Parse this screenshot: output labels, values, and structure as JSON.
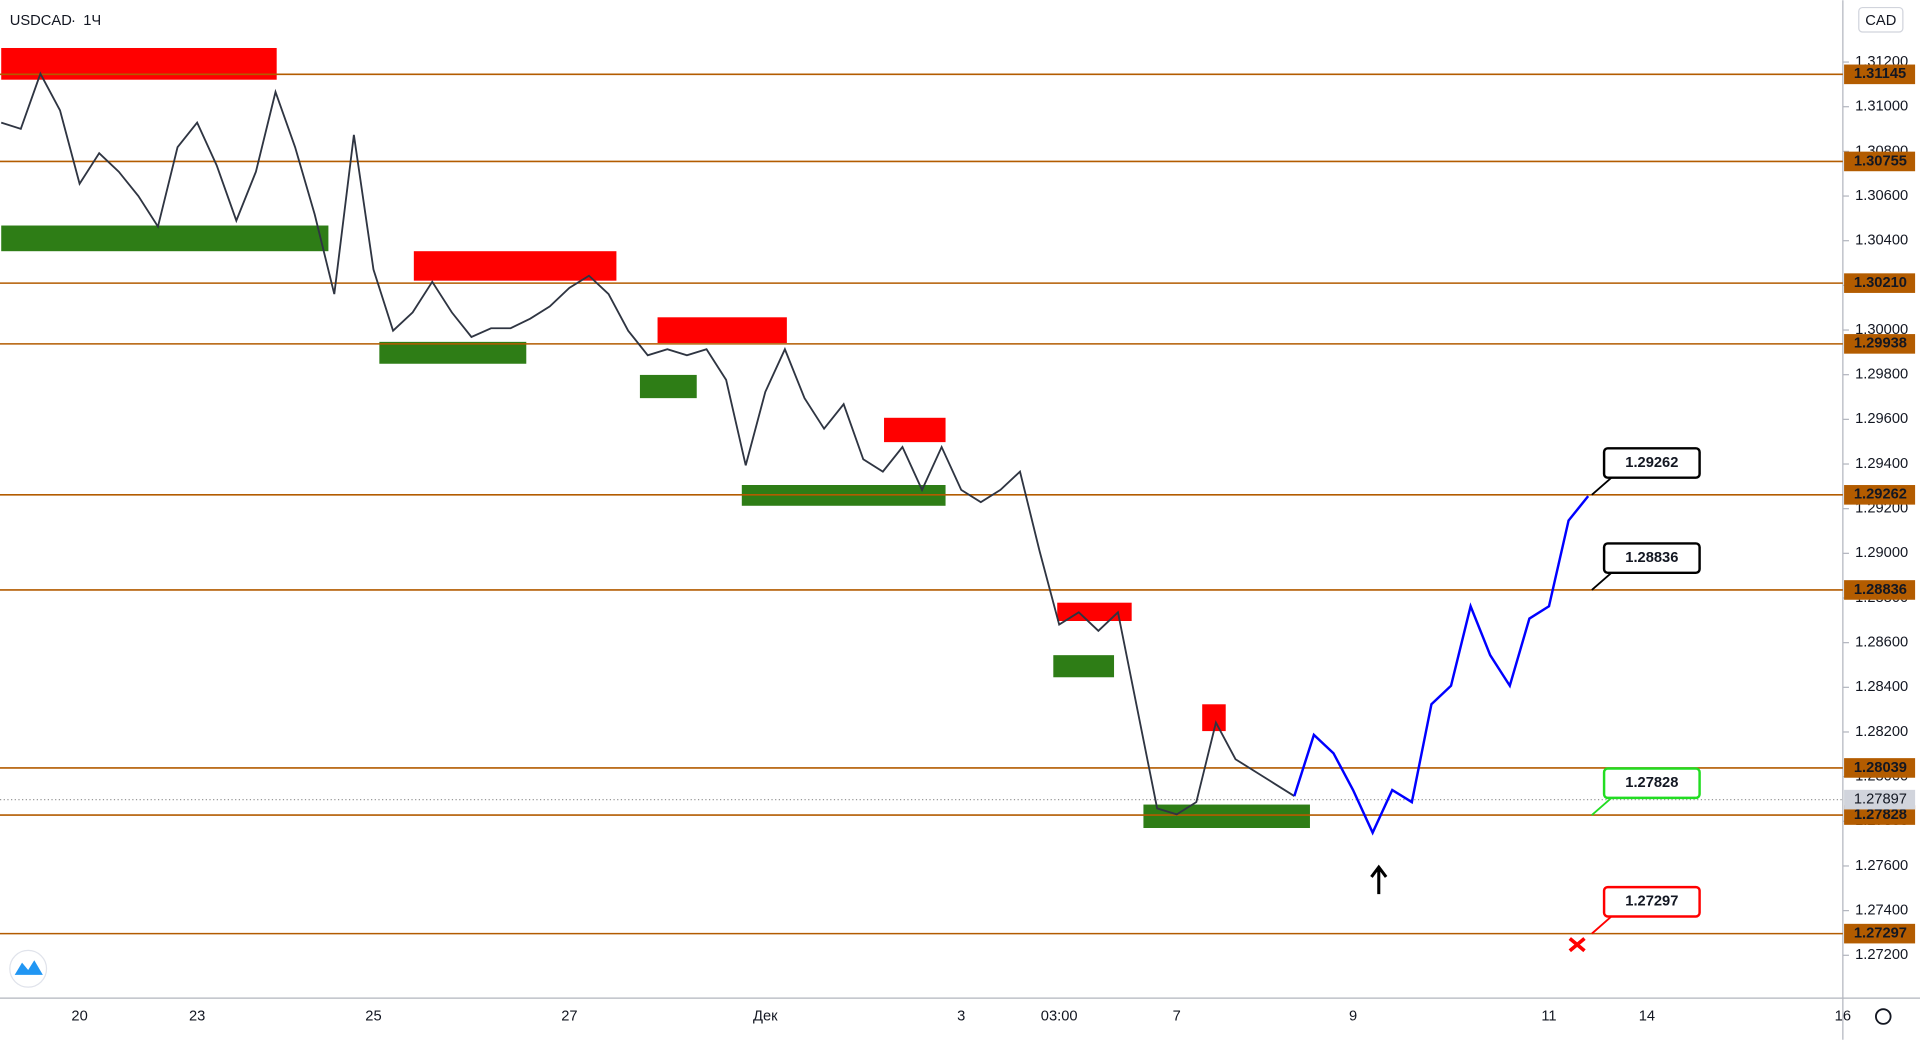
{
  "chart_data": {
    "type": "line",
    "title": "USDCAD",
    "subtitle": "1Ч",
    "currency": "CAD",
    "categories": [
      null,
      null,
      null,
      null,
      "20",
      null,
      null,
      null,
      null,
      null,
      "23",
      null,
      null,
      null,
      null,
      null,
      null,
      null,
      null,
      "25",
      null,
      null,
      null,
      null,
      null,
      null,
      null,
      null,
      null,
      "27",
      null,
      null,
      null,
      null,
      null,
      null,
      null,
      null,
      null,
      "Дек",
      null,
      null,
      null,
      null,
      null,
      null,
      null,
      null,
      null,
      "3",
      null,
      null,
      null,
      null,
      "03:00",
      null,
      null,
      null,
      null,
      null,
      "7",
      null,
      null,
      null,
      null,
      null,
      null,
      null,
      null,
      "9",
      null,
      null,
      null,
      null,
      null,
      null,
      null,
      null,
      null,
      "11",
      null,
      null,
      null,
      null,
      "14",
      null,
      null,
      null,
      null,
      null,
      null,
      null,
      null,
      null,
      "16"
    ],
    "series": [
      {
        "name": "USDCAD",
        "color": "#2f3542",
        "values": [
          1.30929,
          1.30901,
          1.31148,
          1.30984,
          1.30655,
          1.30792,
          1.30709,
          1.306,
          1.30463,
          1.30819,
          1.30929,
          1.30737,
          1.3049,
          1.30709,
          1.31066,
          1.30819,
          1.30518,
          1.30161,
          1.30874,
          1.30271,
          1.29997,
          1.30079,
          1.30216,
          1.30079,
          1.29969,
          1.30008,
          1.30008,
          1.30051,
          1.30106,
          1.30189,
          1.30243,
          1.30161,
          1.29997,
          1.29887,
          1.29914,
          1.29887,
          1.29914,
          1.29777,
          1.29394,
          1.29723,
          1.29914,
          1.29695,
          1.29558,
          1.29668,
          1.29421,
          1.29366,
          1.29476,
          1.29284,
          1.29476,
          1.29284,
          1.29229,
          1.29284,
          1.29366,
          1.2901,
          1.28681,
          1.28736,
          1.28653,
          1.28736,
          1.28297,
          1.27858,
          1.27831,
          1.27886,
          1.28242,
          1.28078,
          1.28023,
          1.27968,
          1.27913,
          null,
          null,
          null,
          null,
          null,
          null,
          null,
          null,
          null,
          null,
          null,
          null,
          null,
          null,
          null,
          null,
          null,
          null,
          null,
          null,
          null,
          null,
          null,
          null,
          null,
          null,
          null,
          null
        ]
      },
      {
        "name": "Forecast",
        "color": "#0000ff",
        "values": [
          null,
          null,
          null,
          null,
          null,
          null,
          null,
          null,
          null,
          null,
          null,
          null,
          null,
          null,
          null,
          null,
          null,
          null,
          null,
          null,
          null,
          null,
          null,
          null,
          null,
          null,
          null,
          null,
          null,
          null,
          null,
          null,
          null,
          null,
          null,
          null,
          null,
          null,
          null,
          null,
          null,
          null,
          null,
          null,
          null,
          null,
          null,
          null,
          null,
          null,
          null,
          null,
          null,
          null,
          null,
          null,
          null,
          null,
          null,
          null,
          null,
          null,
          null,
          null,
          null,
          null,
          1.27913,
          1.28187,
          1.28105,
          1.2794,
          1.27749,
          1.2794,
          1.27886,
          1.28324,
          1.28407,
          1.28763,
          1.28544,
          1.28407,
          1.28708,
          1.28763,
          1.29147,
          1.29256,
          null,
          null,
          null,
          null,
          null,
          null,
          null,
          null,
          null,
          null,
          null,
          null,
          null
        ]
      }
    ],
    "ylim": [
      1.27008,
      1.31477
    ],
    "yticks": [
      {
        "value": 1.312,
        "label": "1.31200"
      },
      {
        "value": 1.31,
        "label": "1.31000"
      },
      {
        "value": 1.308,
        "label": "1.30800"
      },
      {
        "value": 1.306,
        "label": "1.30600"
      },
      {
        "value": 1.304,
        "label": "1.30400"
      },
      {
        "value": 1.302,
        "label": "1.30200"
      },
      {
        "value": 1.3,
        "label": "1.30000"
      },
      {
        "value": 1.298,
        "label": "1.29800"
      },
      {
        "value": 1.296,
        "label": "1.29600"
      },
      {
        "value": 1.294,
        "label": "1.29400"
      },
      {
        "value": 1.292,
        "label": "1.29200"
      },
      {
        "value": 1.29,
        "label": "1.29000"
      },
      {
        "value": 1.288,
        "label": "1.28800"
      },
      {
        "value": 1.286,
        "label": "1.28600"
      },
      {
        "value": 1.284,
        "label": "1.28400"
      },
      {
        "value": 1.282,
        "label": "1.28200"
      },
      {
        "value": 1.28,
        "label": "1.28000"
      },
      {
        "value": 1.278,
        "label": "1.27800"
      },
      {
        "value": 1.276,
        "label": "1.27600"
      },
      {
        "value": 1.274,
        "label": "1.27400"
      },
      {
        "value": 1.272,
        "label": "1.27200"
      }
    ],
    "levels": [
      1.31145,
      1.30755,
      {
        "value": 1.3021,
        "label": "1.30210"
      },
      1.29938,
      1.29262,
      1.28836,
      1.28039,
      1.27828,
      1.27297
    ],
    "level_color": "#b35c00",
    "last_price": 1.27897,
    "zones": [
      {
        "color": "#ff0000",
        "x": [
          0,
          14.06
        ],
        "y": [
          1.31121,
          1.31263
        ]
      },
      {
        "color": "#ff0000",
        "x": [
          21.06,
          31.4
        ],
        "y": [
          1.30221,
          1.30353
        ]
      },
      {
        "color": "#ff0000",
        "x": [
          33.5,
          40.1
        ],
        "y": [
          1.29942,
          1.30057
        ]
      },
      {
        "color": "#ff0000",
        "x": [
          45.06,
          48.2
        ],
        "y": [
          1.29498,
          1.29607
        ]
      },
      {
        "color": "#ff0000",
        "x": [
          53.9,
          57.7
        ],
        "y": [
          1.28697,
          1.28779
        ]
      },
      {
        "color": "#ff0000",
        "x": [
          61.3,
          62.5
        ],
        "y": [
          1.28204,
          1.28324
        ]
      },
      {
        "color": "#2e7d16",
        "x": [
          0,
          16.7
        ],
        "y": [
          1.30353,
          1.30468
        ]
      },
      {
        "color": "#2e7d16",
        "x": [
          19.3,
          26.8
        ],
        "y": [
          1.29849,
          1.29947
        ]
      },
      {
        "color": "#2e7d16",
        "x": [
          32.6,
          35.5
        ],
        "y": [
          1.29695,
          1.29799
        ]
      },
      {
        "color": "#2e7d16",
        "x": [
          37.8,
          48.2
        ],
        "y": [
          1.29213,
          1.29306
        ]
      },
      {
        "color": "#2e7d16",
        "x": [
          53.7,
          56.8
        ],
        "y": [
          1.28445,
          1.28544
        ]
      },
      {
        "color": "#2e7d16",
        "x": [
          58.3,
          66.8
        ],
        "y": [
          1.2777,
          1.27875
        ]
      }
    ],
    "targets": [
      {
        "value": 1.29262,
        "color": "#000000"
      },
      {
        "value": 1.28836,
        "color": "#000000"
      },
      {
        "value": 1.27828,
        "color": "#22dd22"
      },
      {
        "value": 1.27297,
        "color": "#ff0000"
      }
    ]
  }
}
